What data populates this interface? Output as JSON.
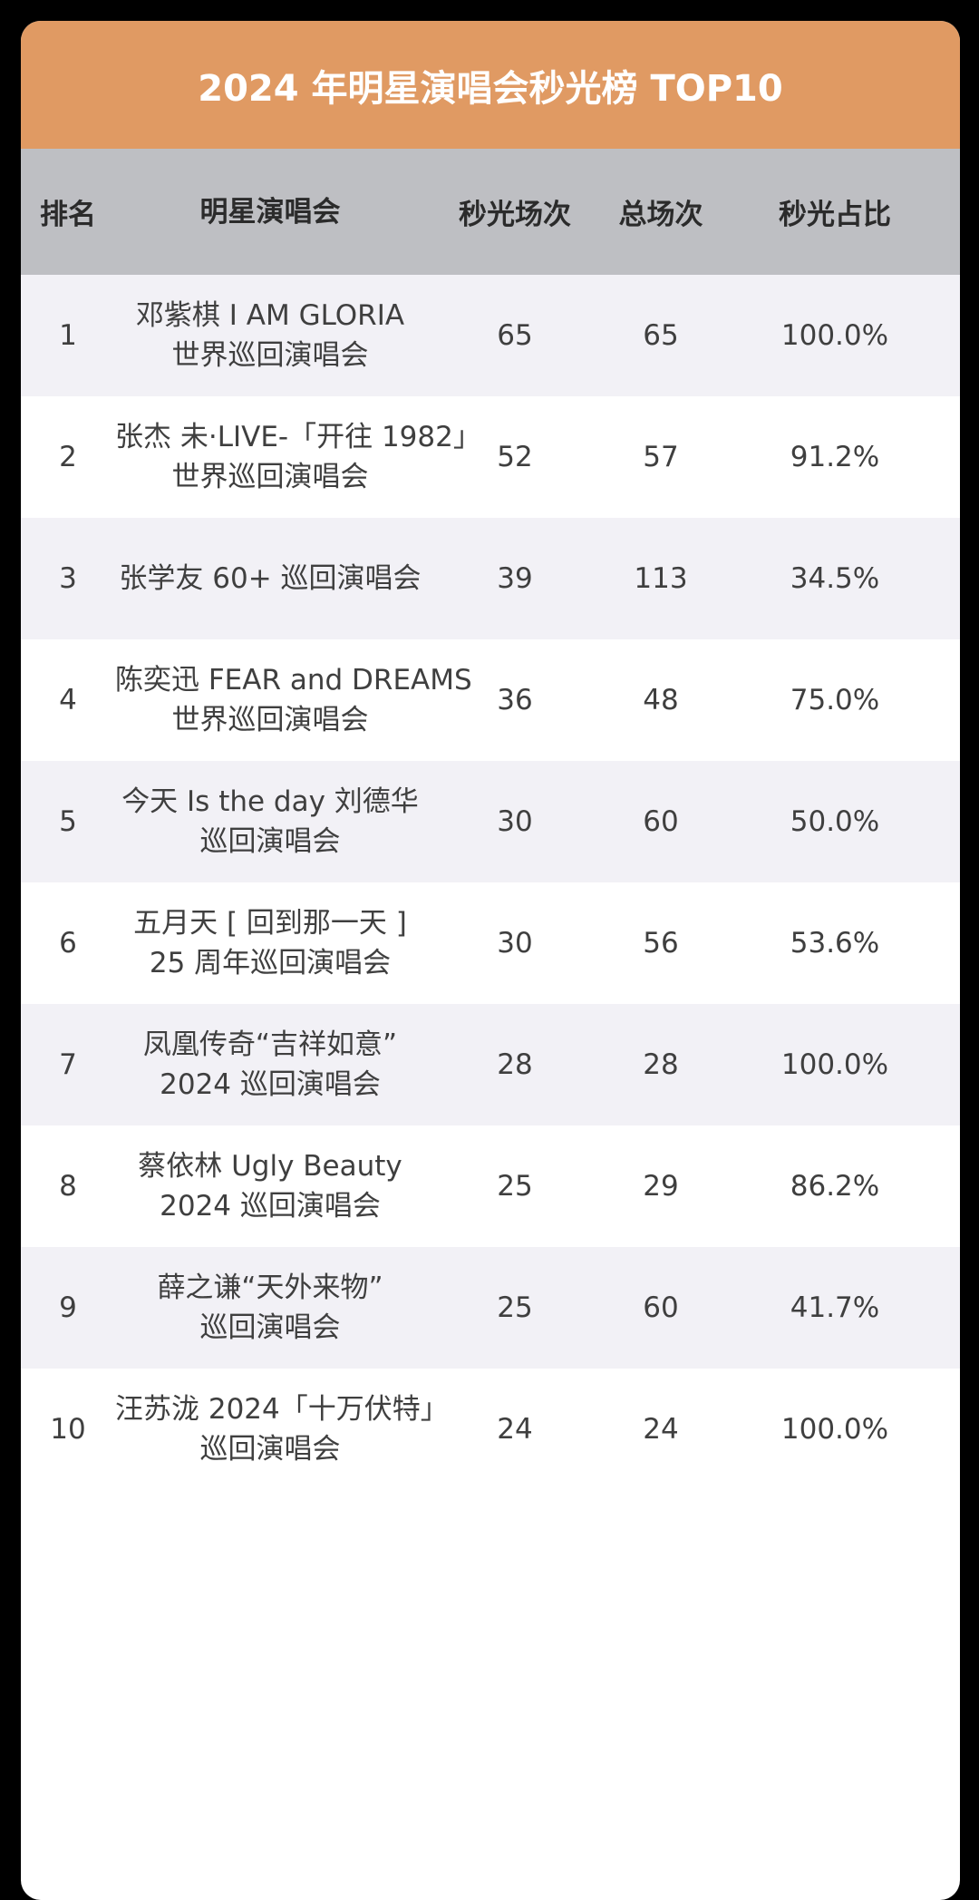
{
  "title": "2024 年明星演唱会秒光榜 TOP10",
  "colors": {
    "title_bg": "#E09A63",
    "header_bg": "#BEBFC3",
    "row_odd_bg": "#F2F1F6",
    "row_even_bg": "#FFFFFF",
    "page_bg": "#000000"
  },
  "headers": {
    "rank": "排名",
    "concert": "明星演唱会",
    "sellout_shows": "秒光场次",
    "total_shows": "总场次",
    "sellout_ratio": "秒光占比"
  },
  "rows": [
    {
      "rank": "1",
      "name_line1": "邓紫棋 I AM GLORIA",
      "name_line2": "世界巡回演唱会",
      "sellout": "65",
      "total": "65",
      "ratio": "100.0%"
    },
    {
      "rank": "2",
      "name_line1": "张杰 未·LIVE-「开往 1982」",
      "name_line2": "世界巡回演唱会",
      "sellout": "52",
      "total": "57",
      "ratio": "91.2%"
    },
    {
      "rank": "3",
      "name_line1": "张学友 60+ 巡回演唱会",
      "name_line2": "",
      "sellout": "39",
      "total": "113",
      "ratio": "34.5%"
    },
    {
      "rank": "4",
      "name_line1": "陈奕迅 FEAR and DREAMS",
      "name_line2": "世界巡回演唱会",
      "sellout": "36",
      "total": "48",
      "ratio": "75.0%"
    },
    {
      "rank": "5",
      "name_line1": "今天 Is the day 刘德华",
      "name_line2": "巡回演唱会",
      "sellout": "30",
      "total": "60",
      "ratio": "50.0%"
    },
    {
      "rank": "6",
      "name_line1": "五月天 [ 回到那一天 ]",
      "name_line2": "25 周年巡回演唱会",
      "sellout": "30",
      "total": "56",
      "ratio": "53.6%"
    },
    {
      "rank": "7",
      "name_line1": "凤凰传奇“吉祥如意”",
      "name_line2": "2024 巡回演唱会",
      "sellout": "28",
      "total": "28",
      "ratio": "100.0%"
    },
    {
      "rank": "8",
      "name_line1": "蔡依林 Ugly Beauty",
      "name_line2": "2024 巡回演唱会",
      "sellout": "25",
      "total": "29",
      "ratio": "86.2%"
    },
    {
      "rank": "9",
      "name_line1": "薛之谦“天外来物”",
      "name_line2": "巡回演唱会",
      "sellout": "25",
      "total": "60",
      "ratio": "41.7%"
    },
    {
      "rank": "10",
      "name_line1": "汪苏泷 2024「十万伏特」",
      "name_line2": "巡回演唱会",
      "sellout": "24",
      "total": "24",
      "ratio": "100.0%"
    }
  ]
}
